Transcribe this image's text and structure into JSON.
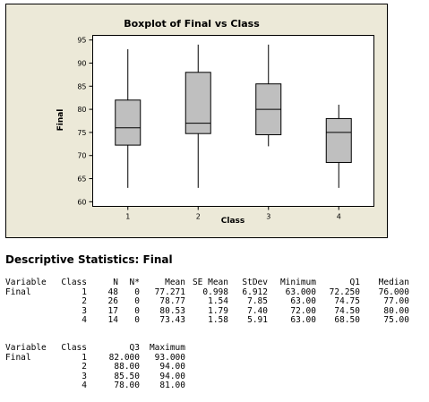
{
  "chart_data": {
    "type": "boxplot",
    "title": "Boxplot of Final vs Class",
    "xlabel": "Class",
    "ylabel": "Final",
    "ylim": [
      59,
      96
    ],
    "yticks": [
      "60",
      "65",
      "70",
      "75",
      "80",
      "85",
      "90",
      "95"
    ],
    "categories": [
      "1",
      "2",
      "3",
      "4"
    ],
    "boxes": [
      {
        "category": "1",
        "min": 63,
        "q1": 72.25,
        "median": 76.0,
        "q3": 82.0,
        "max": 93.0
      },
      {
        "category": "2",
        "min": 63,
        "q1": 74.75,
        "median": 77.0,
        "q3": 88.0,
        "max": 94.0
      },
      {
        "category": "3",
        "min": 72,
        "q1": 74.5,
        "median": 80.0,
        "q3": 85.5,
        "max": 94.0
      },
      {
        "category": "4",
        "min": 63,
        "q1": 68.5,
        "median": 75.0,
        "q3": 78.0,
        "max": 81.0
      }
    ],
    "colors": {
      "frame_bg": "#ece9d8",
      "plot_bg": "#ffffff",
      "box_fill": "#bfbfbf",
      "line": "#000000"
    }
  },
  "stats": {
    "title": "Descriptive Statistics: Final",
    "table1": {
      "headers": [
        "Variable",
        "Class",
        "N",
        "N*",
        "Mean",
        "SE Mean",
        "StDev",
        "Minimum",
        "Q1",
        "Median"
      ],
      "rows": [
        [
          "Final",
          "1",
          "48",
          "0",
          "77.271",
          "0.998",
          "6.912",
          "63.000",
          "72.250",
          "76.000"
        ],
        [
          "",
          "2",
          "26",
          "0",
          "78.77",
          "1.54",
          "7.85",
          "63.00",
          "74.75",
          "77.00"
        ],
        [
          "",
          "3",
          "17",
          "0",
          "80.53",
          "1.79",
          "7.40",
          "72.00",
          "74.50",
          "80.00"
        ],
        [
          "",
          "4",
          "14",
          "0",
          "73.43",
          "1.58",
          "5.91",
          "63.00",
          "68.50",
          "75.00"
        ]
      ]
    },
    "table2": {
      "headers": [
        "Variable",
        "Class",
        "Q3",
        "Maximum"
      ],
      "rows": [
        [
          "Final",
          "1",
          "82.000",
          "93.000"
        ],
        [
          "",
          "2",
          "88.00",
          "94.00"
        ],
        [
          "",
          "3",
          "85.50",
          "94.00"
        ],
        [
          "",
          "4",
          "78.00",
          "81.00"
        ]
      ]
    }
  }
}
